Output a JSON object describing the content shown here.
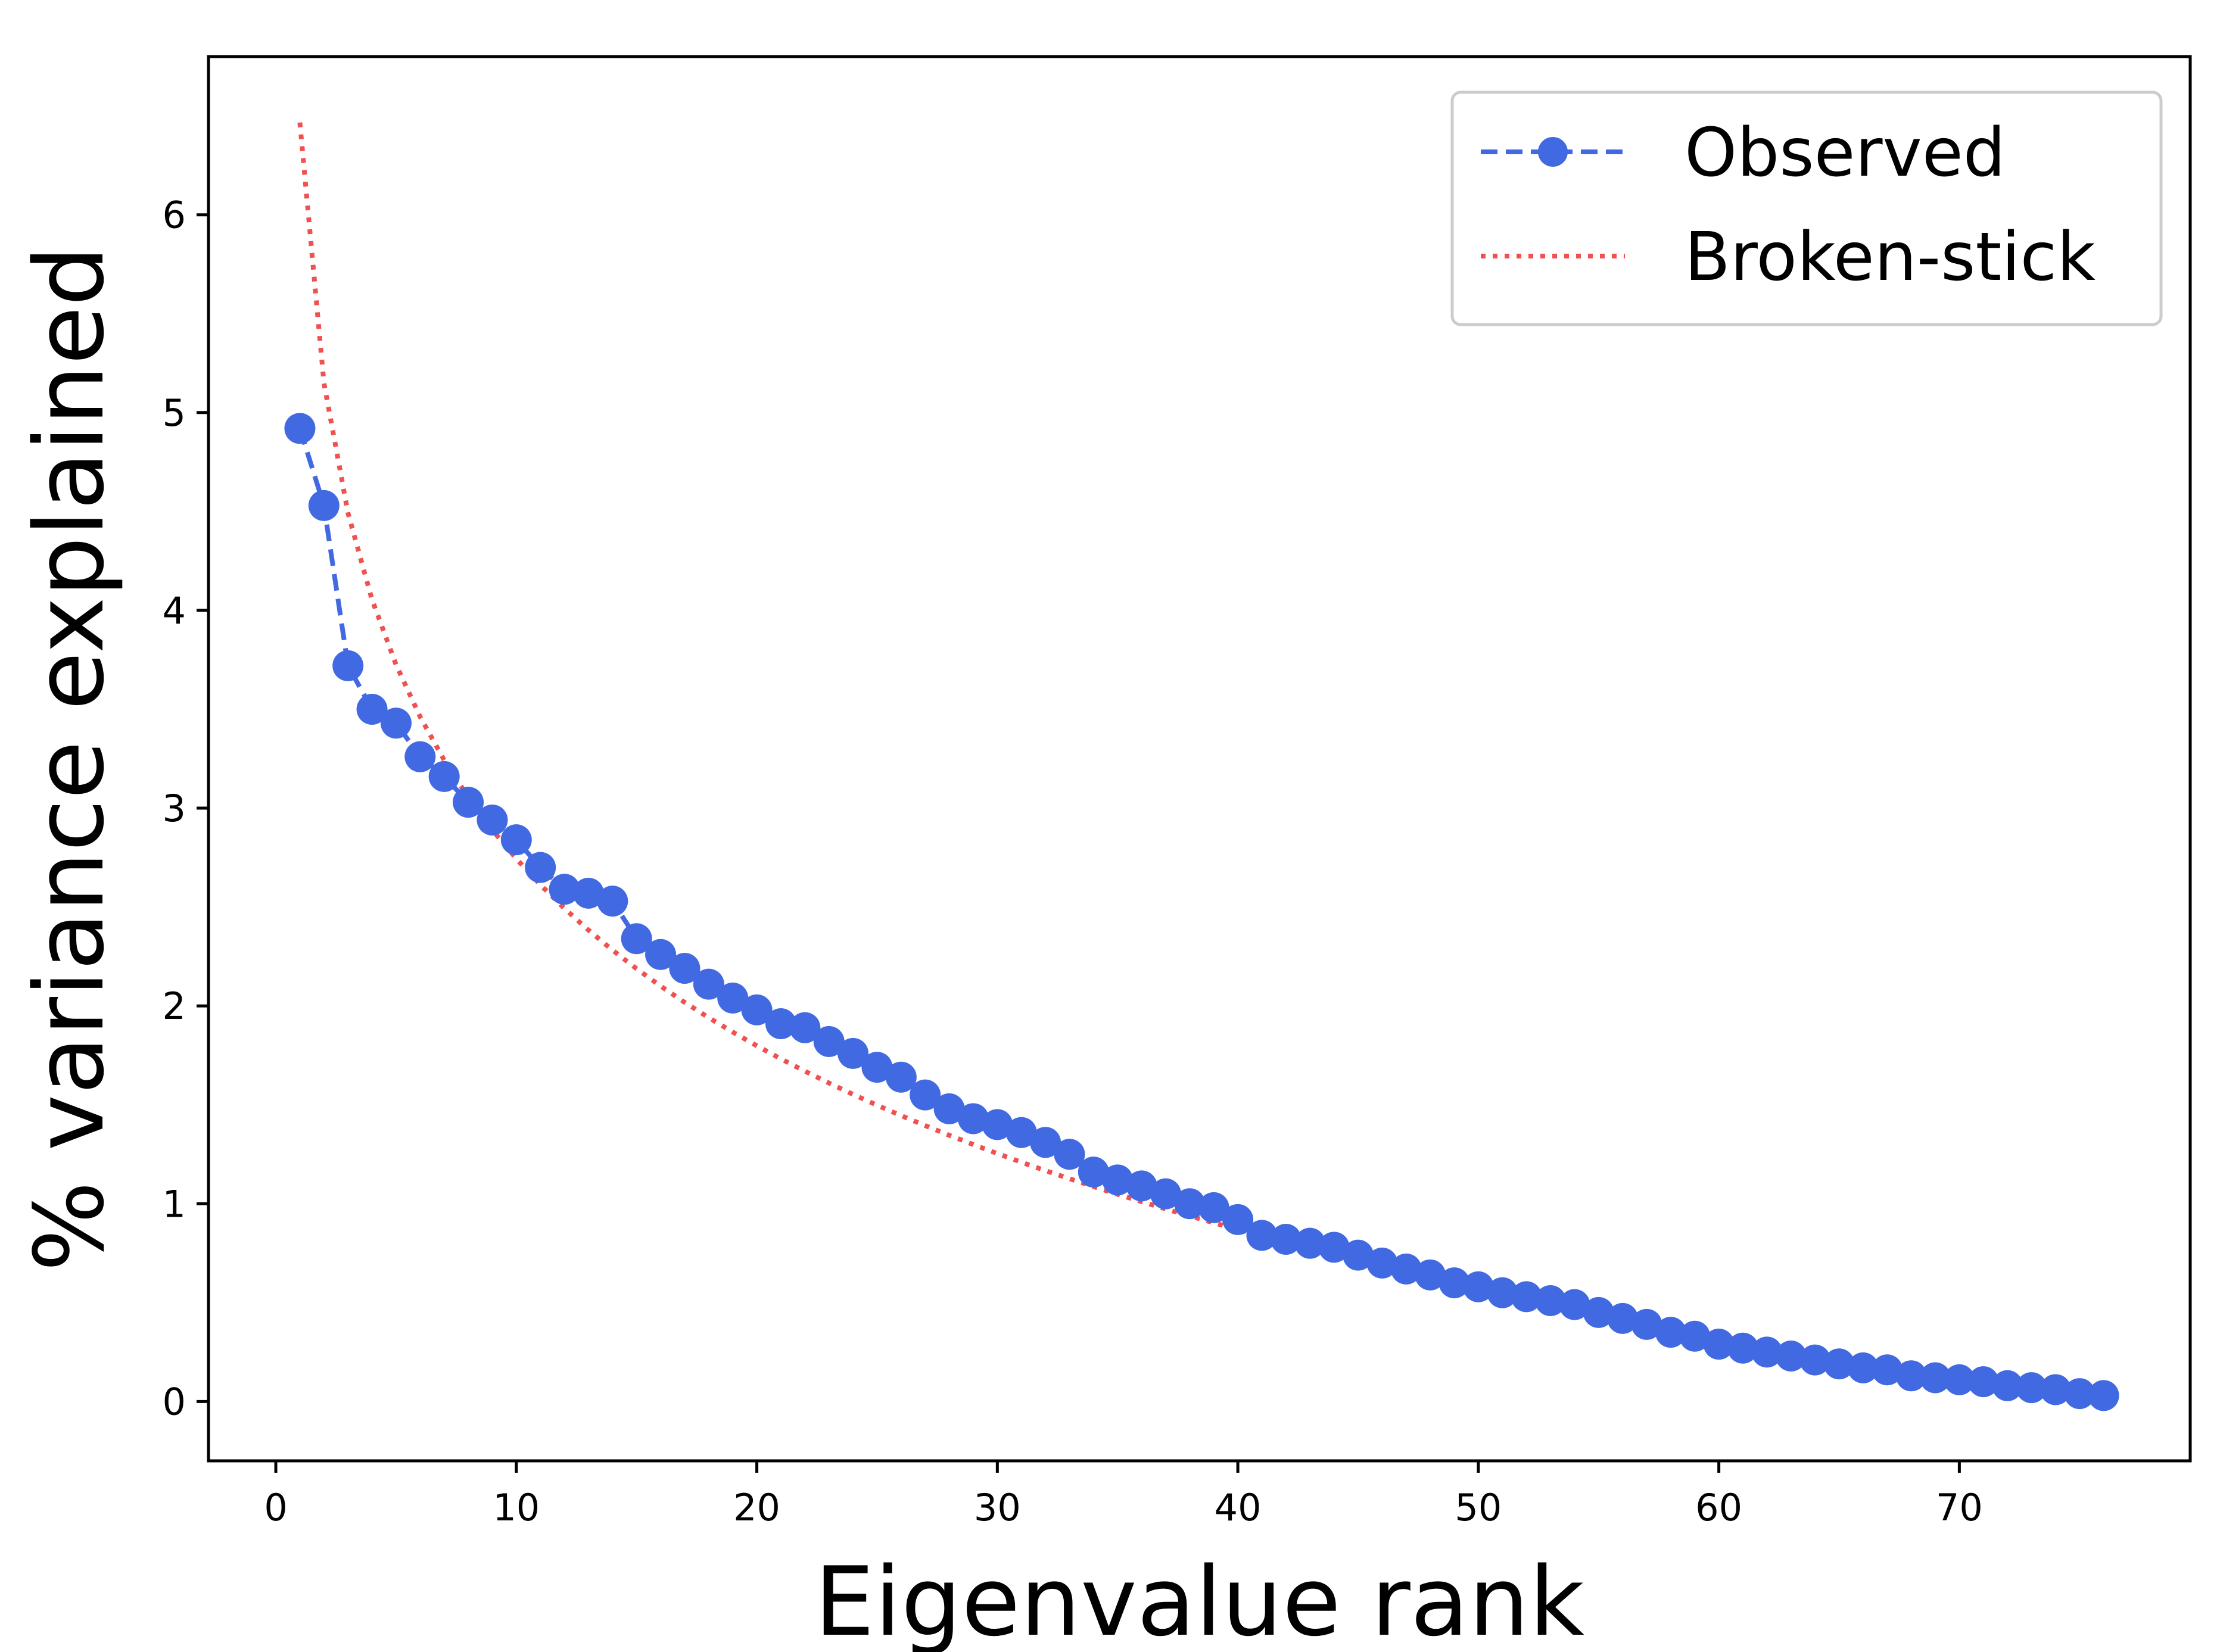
{
  "chart_data": {
    "type": "line",
    "xlabel": "Eigenvalue rank",
    "ylabel": "% variance explained",
    "xlim": [
      -2.8,
      79.6
    ],
    "ylim": [
      -0.3,
      6.8
    ],
    "xticks": [
      0,
      10,
      20,
      30,
      40,
      50,
      60,
      70
    ],
    "yticks": [
      0,
      1,
      2,
      3,
      4,
      5,
      6
    ],
    "grid": false,
    "legend_position": "top-right",
    "series": [
      {
        "name": "Observed",
        "style": "dashed-with-markers",
        "color": "#4169E1",
        "x": [
          1,
          2,
          3,
          4,
          5,
          6,
          7,
          8,
          9,
          10,
          11,
          12,
          13,
          14,
          15,
          16,
          17,
          18,
          19,
          20,
          21,
          22,
          23,
          24,
          25,
          26,
          27,
          28,
          29,
          30,
          31,
          32,
          33,
          34,
          35,
          36,
          37,
          38,
          39,
          40,
          41,
          42,
          43,
          44,
          45,
          46,
          47,
          48,
          49,
          50,
          51,
          52,
          53,
          54,
          55,
          56,
          57,
          58,
          59,
          60,
          61,
          62,
          63,
          64,
          65,
          66,
          67,
          68,
          69,
          70,
          71,
          72,
          73,
          74,
          75,
          76
        ],
        "values": [
          4.92,
          4.53,
          3.72,
          3.5,
          3.43,
          3.26,
          3.16,
          3.03,
          2.94,
          2.84,
          2.7,
          2.59,
          2.57,
          2.53,
          2.34,
          2.26,
          2.19,
          2.11,
          2.04,
          1.98,
          1.91,
          1.89,
          1.82,
          1.76,
          1.69,
          1.64,
          1.55,
          1.48,
          1.43,
          1.4,
          1.36,
          1.31,
          1.25,
          1.16,
          1.12,
          1.09,
          1.05,
          1.0,
          0.98,
          0.92,
          0.84,
          0.82,
          0.8,
          0.78,
          0.74,
          0.7,
          0.67,
          0.64,
          0.6,
          0.58,
          0.55,
          0.53,
          0.51,
          0.49,
          0.45,
          0.42,
          0.39,
          0.35,
          0.33,
          0.29,
          0.27,
          0.25,
          0.23,
          0.21,
          0.19,
          0.17,
          0.16,
          0.13,
          0.12,
          0.11,
          0.1,
          0.08,
          0.07,
          0.06,
          0.04,
          0.03
        ]
      },
      {
        "name": "Broken-stick",
        "style": "dotted",
        "color": "#F05050",
        "x_range": [
          1,
          76
        ],
        "n": 76,
        "formula": "broken-stick: (100/n) * sum_{i=k..n} 1/i"
      }
    ]
  }
}
